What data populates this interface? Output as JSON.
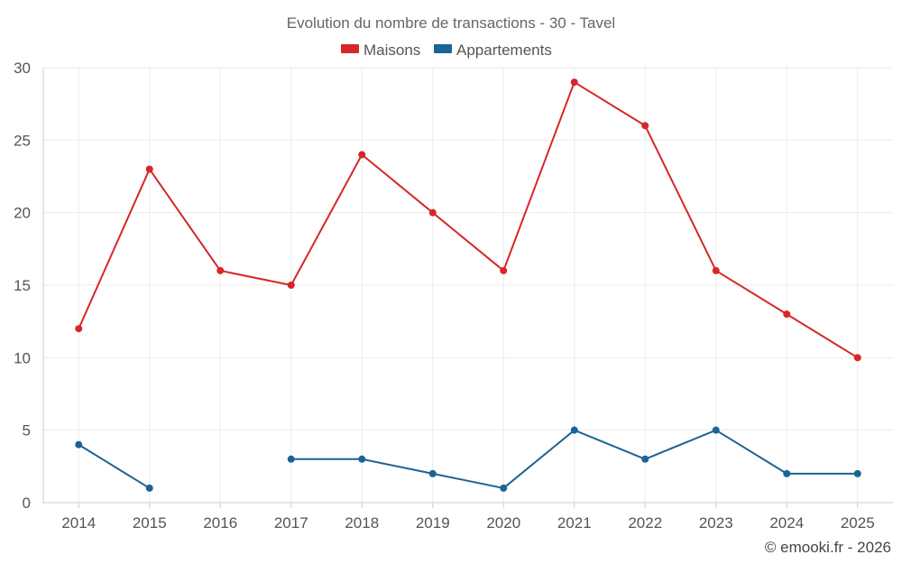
{
  "chart_data": {
    "type": "line",
    "title": "Evolution du nombre de transactions - 30 - Tavel",
    "categories": [
      "2014",
      "2015",
      "2016",
      "2017",
      "2018",
      "2019",
      "2020",
      "2021",
      "2022",
      "2023",
      "2024",
      "2025"
    ],
    "ylim": [
      0,
      30
    ],
    "yticks": [
      0,
      5,
      10,
      15,
      20,
      25,
      30
    ],
    "grid": true,
    "legend_position": "top-center",
    "series": [
      {
        "name": "Maisons",
        "color": "#d62728",
        "values": [
          12,
          23,
          16,
          15,
          24,
          20,
          16,
          29,
          26,
          16,
          13,
          10
        ]
      },
      {
        "name": "Appartements",
        "color": "#1a6496",
        "values": [
          4,
          1,
          null,
          3,
          3,
          2,
          1,
          5,
          3,
          5,
          2,
          2
        ]
      }
    ]
  },
  "credit": "© emooki.fr - 2026"
}
